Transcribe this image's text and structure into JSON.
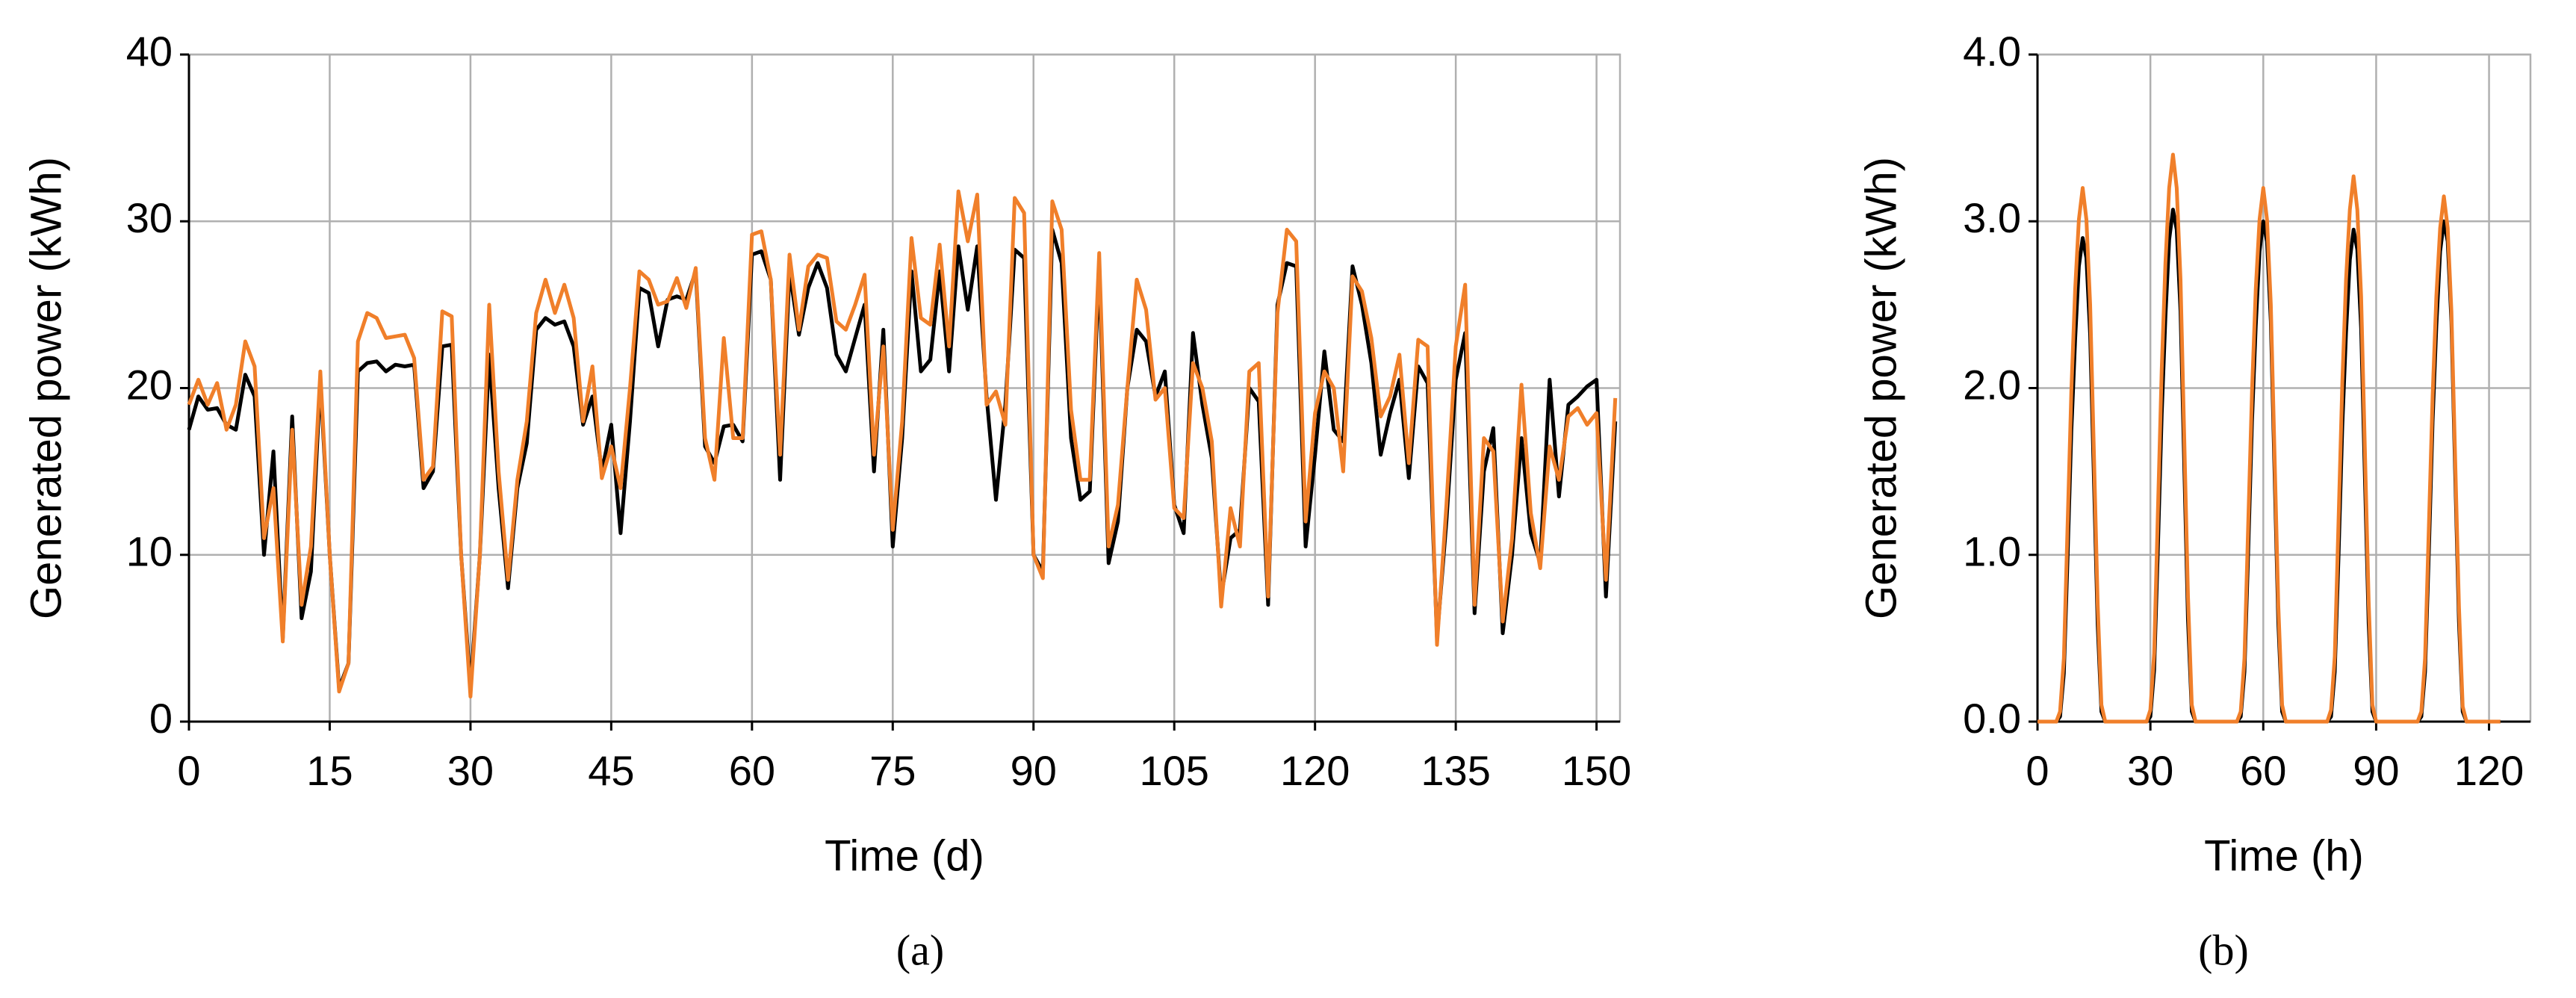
{
  "chart_data": [
    {
      "type": "line",
      "caption": "(a)",
      "xlabel": "Time (d)",
      "ylabel": "Generated power (kWh)",
      "xlim": [
        0,
        152.5
      ],
      "xticks": [
        0,
        15,
        30,
        45,
        60,
        75,
        90,
        105,
        120,
        135,
        150
      ],
      "ylim": [
        0,
        40
      ],
      "yticks": [
        0,
        10,
        20,
        30,
        40
      ],
      "grid": true,
      "x": [
        0,
        1,
        2,
        3,
        4,
        5,
        6,
        7,
        8,
        9,
        10,
        11,
        12,
        13,
        14,
        15,
        16,
        17,
        18,
        19,
        20,
        21,
        22,
        23,
        24,
        25,
        26,
        27,
        28,
        29,
        30,
        31,
        32,
        33,
        34,
        35,
        36,
        37,
        38,
        39,
        40,
        41,
        42,
        43,
        44,
        45,
        46,
        47,
        48,
        49,
        50,
        51,
        52,
        53,
        54,
        55,
        56,
        57,
        58,
        59,
        60,
        61,
        62,
        63,
        64,
        65,
        66,
        67,
        68,
        69,
        70,
        71,
        72,
        73,
        74,
        75,
        76,
        77,
        78,
        79,
        80,
        81,
        82,
        83,
        84,
        85,
        86,
        87,
        88,
        89,
        90,
        91,
        92,
        93,
        94,
        95,
        96,
        97,
        98,
        99,
        100,
        101,
        102,
        103,
        104,
        105,
        106,
        107,
        108,
        109,
        110,
        111,
        112,
        113,
        114,
        115,
        116,
        117,
        118,
        119,
        120,
        121,
        122,
        123,
        124,
        125,
        126,
        127,
        128,
        129,
        130,
        131,
        132,
        133,
        134,
        135,
        136,
        137,
        138,
        139,
        140,
        141,
        142,
        143,
        144,
        145,
        146,
        147,
        148,
        149,
        150,
        151,
        152
      ],
      "series": [
        {
          "color": "#000000",
          "values": [
            17.5,
            19.5,
            18.7,
            18.8,
            17.8,
            17.5,
            20.8,
            19.5,
            10,
            16.2,
            5,
            18.3,
            6.2,
            9,
            20.5,
            10,
            2,
            3.5,
            21,
            21.5,
            21.6,
            21,
            21.4,
            21.3,
            21.4,
            14,
            15,
            22.5,
            22.6,
            10,
            2,
            10,
            22,
            14,
            8,
            14,
            16.7,
            23.5,
            24.2,
            23.8,
            24,
            22.5,
            17.8,
            19.5,
            15,
            17.8,
            11.3,
            18,
            26,
            25.7,
            22.5,
            25.3,
            25.5,
            25.3,
            27,
            16.5,
            15.5,
            17.7,
            17.8,
            16.8,
            28,
            28.2,
            26.5,
            14.5,
            27,
            23.2,
            26,
            27.5,
            26,
            22,
            21,
            23,
            25,
            15,
            23.5,
            10.5,
            17,
            27,
            21,
            21.7,
            27,
            21,
            28.5,
            24.7,
            28.5,
            19.5,
            13.3,
            19,
            28.3,
            27.8,
            10,
            9,
            29.5,
            27.5,
            17,
            13.3,
            13.8,
            27.2,
            9.5,
            12,
            20,
            23.5,
            22.8,
            19.5,
            21,
            13,
            11.3,
            23.3,
            19,
            15.8,
            7.5,
            11,
            11.5,
            20,
            19.2,
            7,
            25,
            27.5,
            27.3,
            10.5,
            16,
            22.2,
            17.5,
            16.8,
            27.3,
            25,
            21.5,
            16,
            18.5,
            20.5,
            14.6,
            21.3,
            20.3,
            5,
            12,
            20.5,
            23.3,
            6.5,
            15,
            17.6,
            5.3,
            10,
            17,
            11.3,
            9.5,
            20.5,
            13.5,
            19,
            19.5,
            20.1,
            20.5,
            7.5,
            18
          ]
        },
        {
          "color": "#f07f2a",
          "values": [
            19,
            20.5,
            19,
            20.3,
            17.5,
            19,
            22.8,
            21.3,
            11,
            14,
            4.8,
            17.5,
            7,
            10.5,
            21,
            10,
            1.8,
            3.5,
            22.8,
            24.5,
            24.2,
            23,
            23.1,
            23.2,
            21.8,
            14.5,
            15.3,
            24.6,
            24.3,
            10,
            1.5,
            10,
            25,
            15,
            8.5,
            14.5,
            18,
            24.5,
            26.5,
            24.5,
            26.2,
            24.2,
            18,
            21.3,
            14.6,
            16.5,
            14,
            20,
            27,
            26.5,
            25,
            25.2,
            26.6,
            24.8,
            27.2,
            17,
            14.5,
            23,
            17,
            17,
            29.2,
            29.4,
            26.5,
            16,
            28,
            23.5,
            27.3,
            28,
            27.8,
            24,
            23.5,
            25,
            26.8,
            16,
            22.5,
            11.5,
            18,
            29,
            24.2,
            23.8,
            28.6,
            22.5,
            31.8,
            28.8,
            31.6,
            19,
            19.8,
            17.8,
            31.4,
            30.5,
            10,
            8.6,
            31.2,
            29.5,
            18.7,
            14.5,
            14.5,
            28.1,
            10.5,
            13,
            20,
            26.5,
            24.7,
            19.3,
            20,
            12.8,
            12.2,
            21.5,
            20,
            16.8,
            6.9,
            12.8,
            10.5,
            21,
            21.5,
            7.5,
            24.5,
            29.5,
            28.8,
            12,
            18.5,
            21,
            20,
            15,
            26.7,
            25.8,
            23,
            18.3,
            19.5,
            22,
            15.5,
            22.9,
            22.5,
            4.6,
            13,
            22.5,
            26.2,
            7,
            17,
            16.2,
            6,
            11,
            20.2,
            12.5,
            9.2,
            16.5,
            14.5,
            18.3,
            18.8,
            17.8,
            18.5,
            8.5,
            19.4
          ]
        }
      ]
    },
    {
      "type": "line",
      "caption": "(b)",
      "xlabel": "Time (h)",
      "ylabel": "Generated power (kWh)",
      "xlim": [
        0,
        131
      ],
      "xticks": [
        0,
        30,
        60,
        90,
        120
      ],
      "ylim": [
        0,
        4
      ],
      "yticks": [
        {
          "value": 0,
          "label": "0.0"
        },
        {
          "value": 1,
          "label": "1.0"
        },
        {
          "value": 2,
          "label": "2.0"
        },
        {
          "value": 3,
          "label": "3.0"
        },
        {
          "value": 4,
          "label": "4.0"
        }
      ],
      "grid": true,
      "x": [
        0,
        1,
        2,
        3,
        4,
        5,
        6,
        7,
        8,
        9,
        10,
        11,
        12,
        13,
        14,
        15,
        16,
        17,
        18,
        19,
        20,
        21,
        22,
        23,
        24,
        25,
        26,
        27,
        28,
        29,
        30,
        31,
        32,
        33,
        34,
        35,
        36,
        37,
        38,
        39,
        40,
        41,
        42,
        43,
        44,
        45,
        46,
        47,
        48,
        49,
        50,
        51,
        52,
        53,
        54,
        55,
        56,
        57,
        58,
        59,
        60,
        61,
        62,
        63,
        64,
        65,
        66,
        67,
        68,
        69,
        70,
        71,
        72,
        73,
        74,
        75,
        76,
        77,
        78,
        79,
        80,
        81,
        82,
        83,
        84,
        85,
        86,
        87,
        88,
        89,
        90,
        91,
        92,
        93,
        94,
        95,
        96,
        97,
        98,
        99,
        100,
        101,
        102,
        103,
        104,
        105,
        106,
        107,
        108,
        109,
        110,
        111,
        112,
        113,
        114,
        115,
        116,
        117,
        118,
        119,
        120,
        121,
        122,
        123
      ],
      "series": [
        {
          "color": "#000000",
          "values": [
            0,
            0,
            0,
            0,
            0,
            0,
            0.03,
            0.29,
            0.99,
            1.74,
            2.29,
            2.73,
            2.9,
            2.78,
            2.32,
            1.45,
            0.58,
            0.06,
            0,
            0,
            0,
            0,
            0,
            0,
            0,
            0,
            0,
            0,
            0,
            0,
            0.03,
            0.31,
            1.04,
            1.84,
            2.43,
            2.89,
            3.07,
            2.95,
            2.46,
            1.54,
            0.61,
            0.06,
            0,
            0,
            0,
            0,
            0,
            0,
            0,
            0,
            0,
            0,
            0,
            0,
            0.03,
            0.3,
            1.02,
            1.8,
            2.37,
            2.82,
            3.0,
            2.88,
            2.4,
            1.5,
            0.6,
            0.06,
            0,
            0,
            0,
            0,
            0,
            0,
            0,
            0,
            0,
            0,
            0,
            0,
            0.03,
            0.3,
            1.0,
            1.77,
            2.33,
            2.77,
            2.95,
            2.83,
            2.36,
            1.48,
            0.59,
            0.06,
            0,
            0,
            0,
            0,
            0,
            0,
            0,
            0,
            0,
            0,
            0,
            0,
            0.03,
            0.3,
            1.02,
            1.8,
            2.37,
            2.82,
            3.0,
            2.88,
            2.4,
            1.5,
            0.6,
            0.06,
            0,
            0,
            0,
            0,
            0,
            0,
            0,
            0,
            0,
            0
          ]
        },
        {
          "color": "#f07f2a",
          "values": [
            0,
            0,
            0,
            0,
            0,
            0,
            0.06,
            0.38,
            1.18,
            1.98,
            2.59,
            3.01,
            3.2,
            3.01,
            2.5,
            1.6,
            0.7,
            0.1,
            0,
            0,
            0,
            0,
            0,
            0,
            0,
            0,
            0,
            0,
            0,
            0,
            0.07,
            0.41,
            1.26,
            2.11,
            2.75,
            3.2,
            3.4,
            3.2,
            2.65,
            1.7,
            0.75,
            0.1,
            0,
            0,
            0,
            0,
            0,
            0,
            0,
            0,
            0,
            0,
            0,
            0,
            0.06,
            0.38,
            1.18,
            1.98,
            2.59,
            3.01,
            3.2,
            3.01,
            2.5,
            1.6,
            0.7,
            0.1,
            0,
            0,
            0,
            0,
            0,
            0,
            0,
            0,
            0,
            0,
            0,
            0,
            0.07,
            0.39,
            1.21,
            2.03,
            2.65,
            3.07,
            3.27,
            3.07,
            2.55,
            1.64,
            0.72,
            0.1,
            0,
            0,
            0,
            0,
            0,
            0,
            0,
            0,
            0,
            0,
            0,
            0,
            0.06,
            0.38,
            1.17,
            1.95,
            2.55,
            2.96,
            3.15,
            2.96,
            2.46,
            1.58,
            0.69,
            0.09,
            0,
            0,
            0,
            0,
            0,
            0,
            0,
            0,
            0,
            0
          ]
        }
      ]
    }
  ]
}
